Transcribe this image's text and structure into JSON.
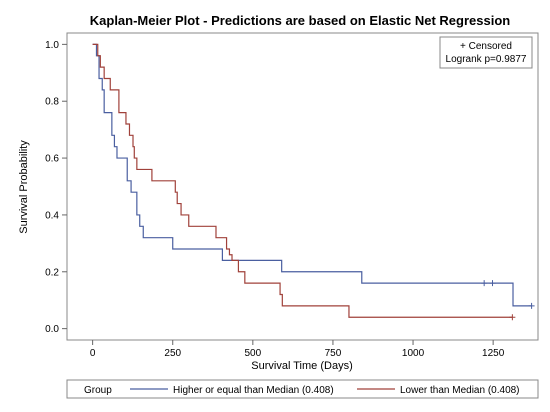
{
  "chart_data": {
    "type": "line",
    "title": "Kaplan-Meier Plot - Predictions are based on Elastic Net Regression",
    "xlabel": "Survival Time (Days)",
    "ylabel": "Survival Probability",
    "xlim": [
      -80,
      1390
    ],
    "ylim": [
      -0.04,
      1.04
    ],
    "xticks": [
      0,
      250,
      500,
      750,
      1000,
      1250
    ],
    "yticks": [
      0.0,
      0.2,
      0.4,
      0.6,
      0.8,
      1.0
    ],
    "xtick_labels": [
      "0",
      "250",
      "500",
      "750",
      "1000",
      "1250"
    ],
    "ytick_labels": [
      "0.0",
      "0.2",
      "0.4",
      "0.6",
      "0.8",
      "1.0"
    ],
    "grid": false,
    "inset": {
      "censored_label": "+ Censored",
      "stat_label": "Logrank p=0.9877",
      "placement": "top-right"
    },
    "legend": {
      "placement": "bottom",
      "title": "Group"
    },
    "series": [
      {
        "name": "Higher or equal than Median (0.408)",
        "color": "#4a5fa0",
        "steps": [
          [
            0,
            1.0
          ],
          [
            12,
            0.96
          ],
          [
            20,
            0.88
          ],
          [
            30,
            0.84
          ],
          [
            36,
            0.76
          ],
          [
            60,
            0.68
          ],
          [
            68,
            0.64
          ],
          [
            76,
            0.6
          ],
          [
            108,
            0.52
          ],
          [
            120,
            0.48
          ],
          [
            138,
            0.4
          ],
          [
            147,
            0.36
          ],
          [
            158,
            0.32
          ],
          [
            250,
            0.28
          ],
          [
            405,
            0.24
          ],
          [
            590,
            0.2
          ],
          [
            840,
            0.16
          ],
          [
            1312,
            0.08
          ],
          [
            1370,
            0.08
          ]
        ],
        "censored": [
          1222,
          1248,
          1370
        ]
      },
      {
        "name": "Lower than Median (0.408)",
        "color": "#a0413a",
        "steps": [
          [
            0,
            1.0
          ],
          [
            16,
            0.96
          ],
          [
            24,
            0.92
          ],
          [
            36,
            0.88
          ],
          [
            55,
            0.84
          ],
          [
            82,
            0.76
          ],
          [
            104,
            0.72
          ],
          [
            115,
            0.68
          ],
          [
            126,
            0.64
          ],
          [
            130,
            0.6
          ],
          [
            138,
            0.56
          ],
          [
            185,
            0.52
          ],
          [
            258,
            0.48
          ],
          [
            264,
            0.44
          ],
          [
            276,
            0.4
          ],
          [
            300,
            0.36
          ],
          [
            385,
            0.32
          ],
          [
            418,
            0.28
          ],
          [
            427,
            0.26
          ],
          [
            435,
            0.24
          ],
          [
            455,
            0.2
          ],
          [
            475,
            0.16
          ],
          [
            585,
            0.12
          ],
          [
            592,
            0.08
          ],
          [
            800,
            0.04
          ],
          [
            1310,
            0.04
          ]
        ],
        "censored": [
          1310
        ]
      }
    ]
  }
}
